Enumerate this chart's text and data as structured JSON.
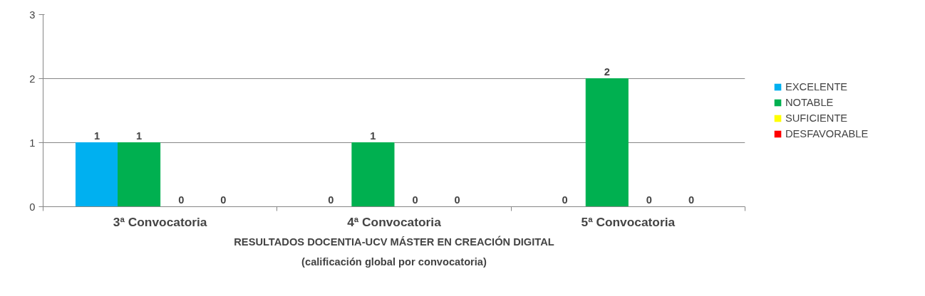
{
  "chart_data": {
    "type": "bar",
    "title": "RESULTADOS DOCENTIA-UCV MÁSTER EN CREACIÓN DIGITAL",
    "subtitle": "(calificación global por convocatoria)",
    "categories": [
      "3ª Convocatoria",
      "4ª Convocatoria",
      "5ª Convocatoria"
    ],
    "series": [
      {
        "name": "EXCELENTE",
        "color": "#00b0f0",
        "values": [
          1,
          0,
          0
        ]
      },
      {
        "name": "NOTABLE",
        "color": "#00b050",
        "values": [
          1,
          1,
          2
        ]
      },
      {
        "name": "SUFICIENTE",
        "color": "#ffff00",
        "values": [
          0,
          0,
          0
        ]
      },
      {
        "name": "DESFAVORABLE",
        "color": "#ff0000",
        "values": [
          0,
          0,
          0
        ]
      }
    ],
    "ylim": [
      0,
      3
    ],
    "yticks": [
      0,
      1,
      2,
      3
    ],
    "grid": "y",
    "legend": "right",
    "data_labels": true
  }
}
